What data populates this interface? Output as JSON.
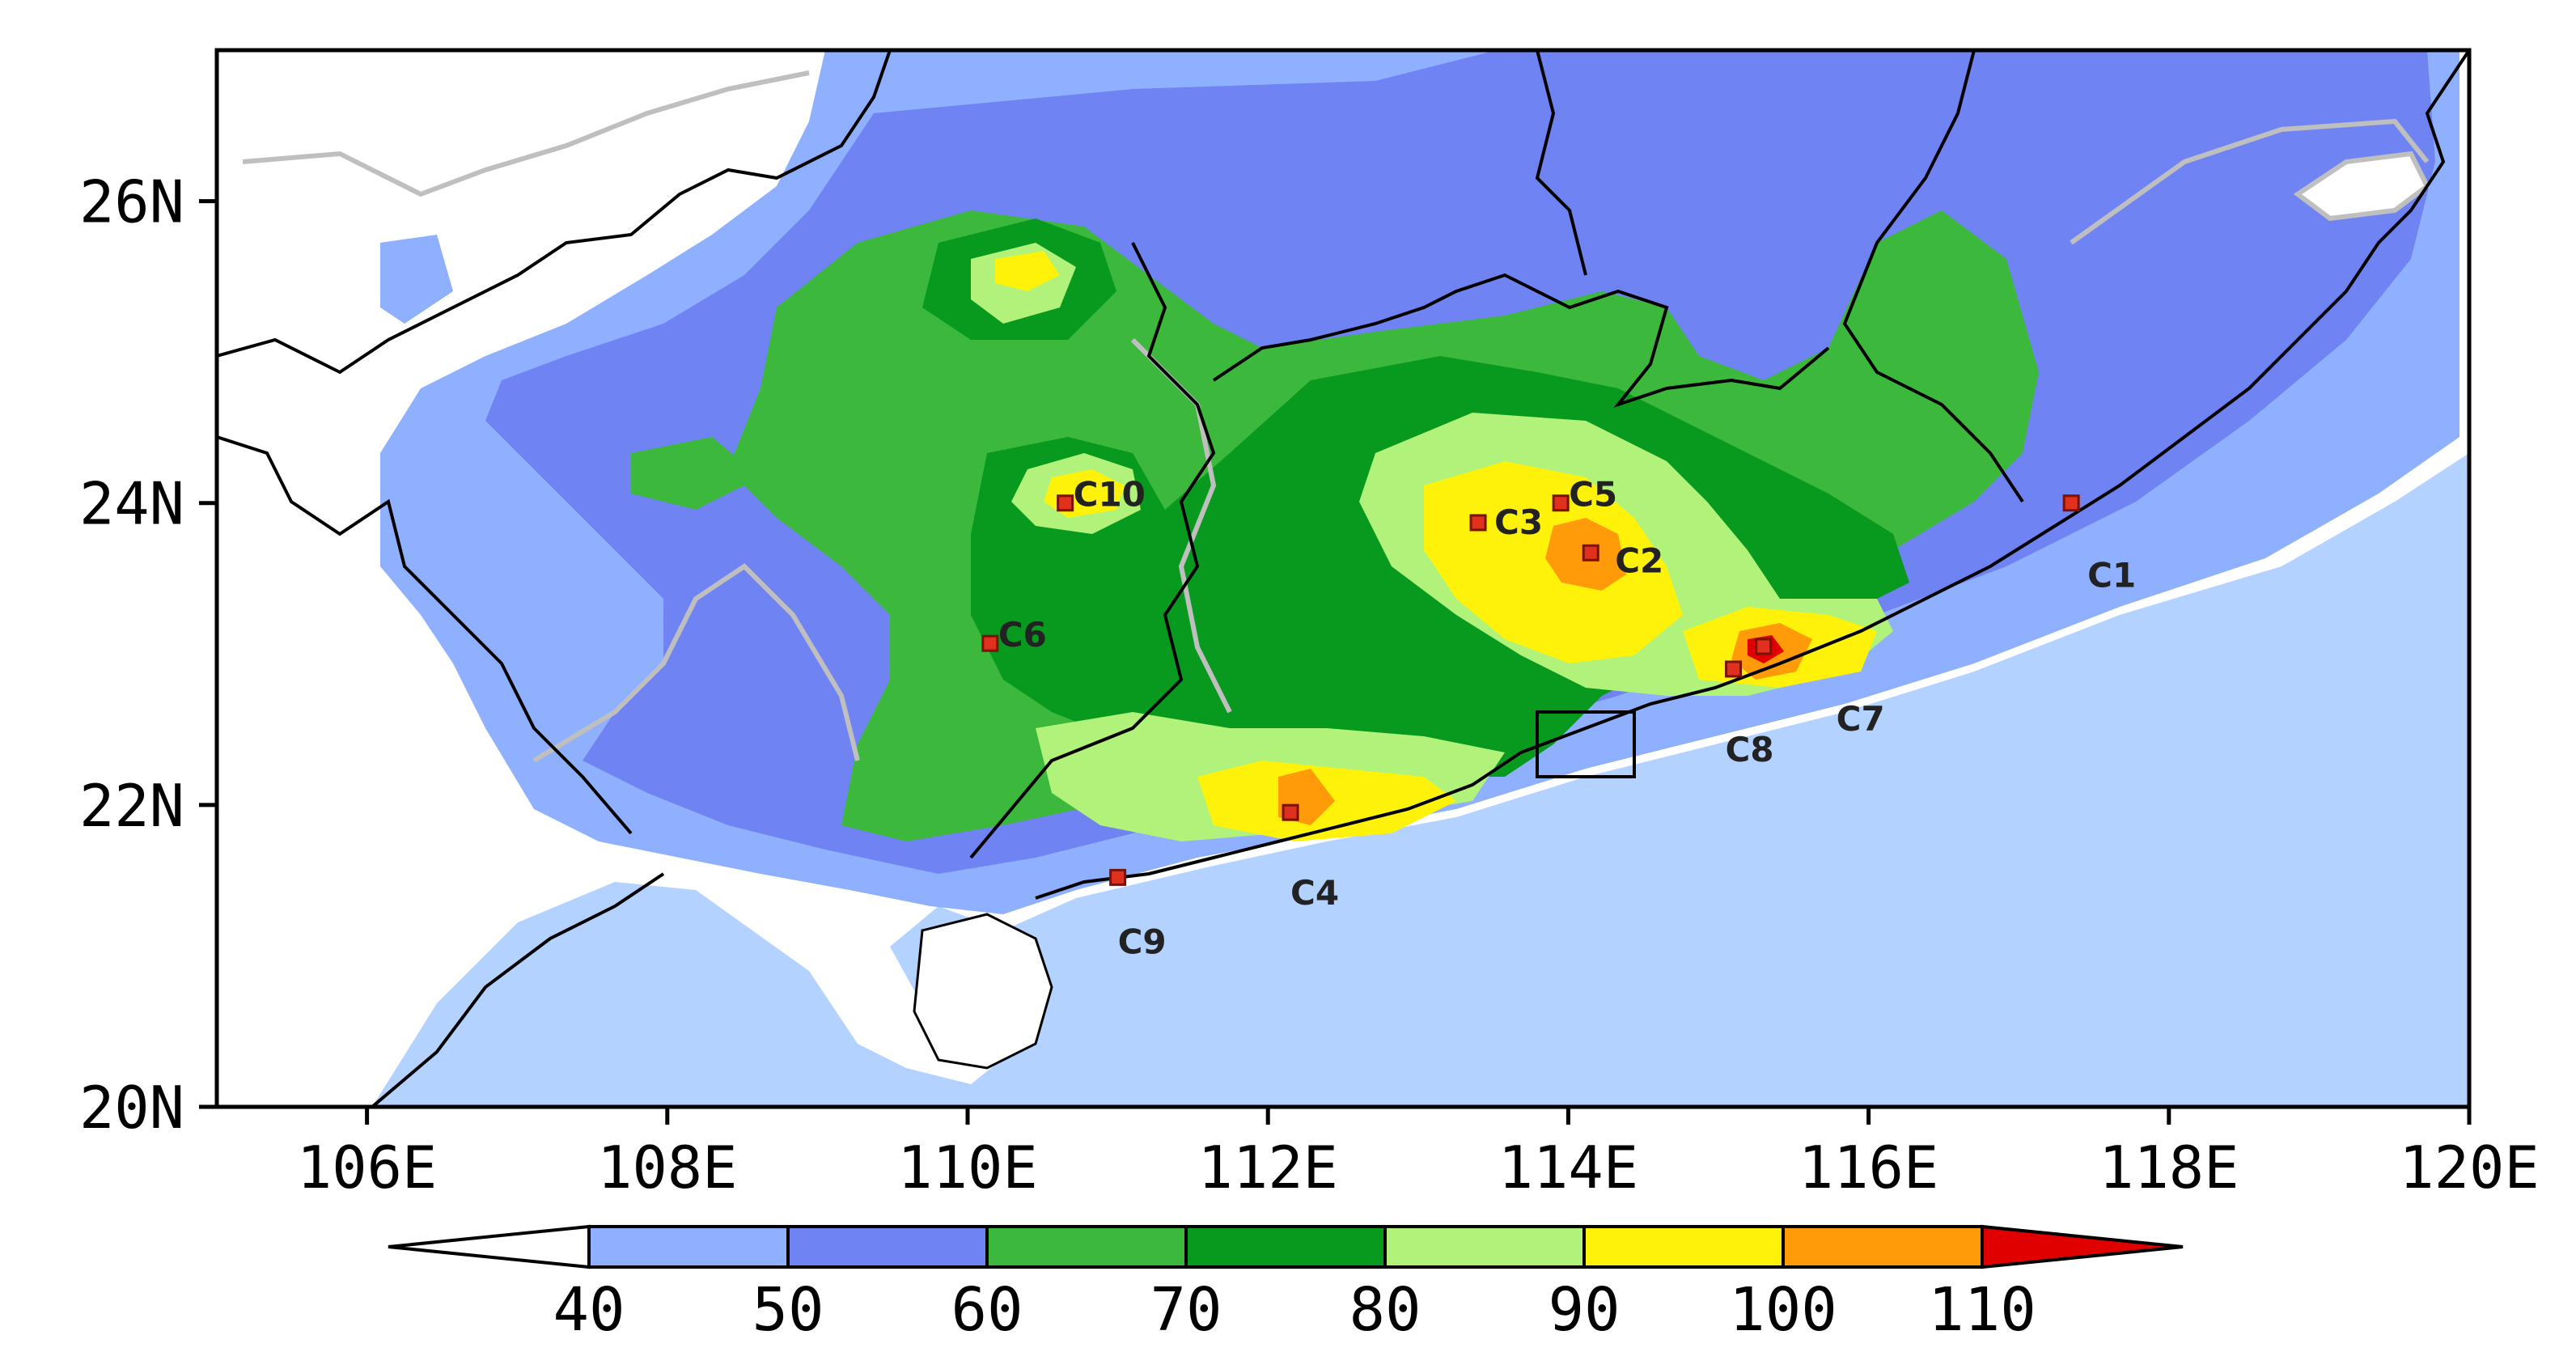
{
  "map": {
    "x_axis": {
      "ticks": [
        "106E",
        "108E",
        "110E",
        "112E",
        "114E",
        "116E",
        "118E",
        "120E"
      ],
      "values": [
        106,
        108,
        110,
        112,
        114,
        116,
        118,
        120
      ],
      "range": [
        105,
        120
      ]
    },
    "y_axis": {
      "ticks": [
        "20N",
        "22N",
        "24N",
        "26N"
      ],
      "values": [
        20,
        22,
        24,
        26
      ],
      "range": [
        20,
        27
      ]
    },
    "stations": [
      {
        "id": "C1",
        "lon": 117.35,
        "lat": 24.0
      },
      {
        "id": "C2",
        "lon": 114.15,
        "lat": 23.67
      },
      {
        "id": "C3",
        "lon": 113.4,
        "lat": 23.87
      },
      {
        "id": "C4",
        "lon": 112.15,
        "lat": 21.95
      },
      {
        "id": "C5",
        "lon": 113.95,
        "lat": 24.0
      },
      {
        "id": "C6",
        "lon": 110.15,
        "lat": 23.07
      },
      {
        "id": "C7",
        "lon": 115.3,
        "lat": 23.05
      },
      {
        "id": "C8",
        "lon": 115.1,
        "lat": 22.9
      },
      {
        "id": "C9",
        "lon": 111.0,
        "lat": 21.52
      },
      {
        "id": "C10",
        "lon": 110.65,
        "lat": 24.0
      }
    ]
  },
  "colorbar": {
    "labels": [
      "40",
      "50",
      "60",
      "70",
      "80",
      "90",
      "100",
      "110"
    ],
    "colors": [
      "#ffffff",
      "#8eb0ff",
      "#7083f2",
      "#3cb83c",
      "#079a1e",
      "#b0f27a",
      "#fff20a",
      "#ff9b08",
      "#e00000"
    ],
    "ocean_color": "#b4d2ff"
  }
}
